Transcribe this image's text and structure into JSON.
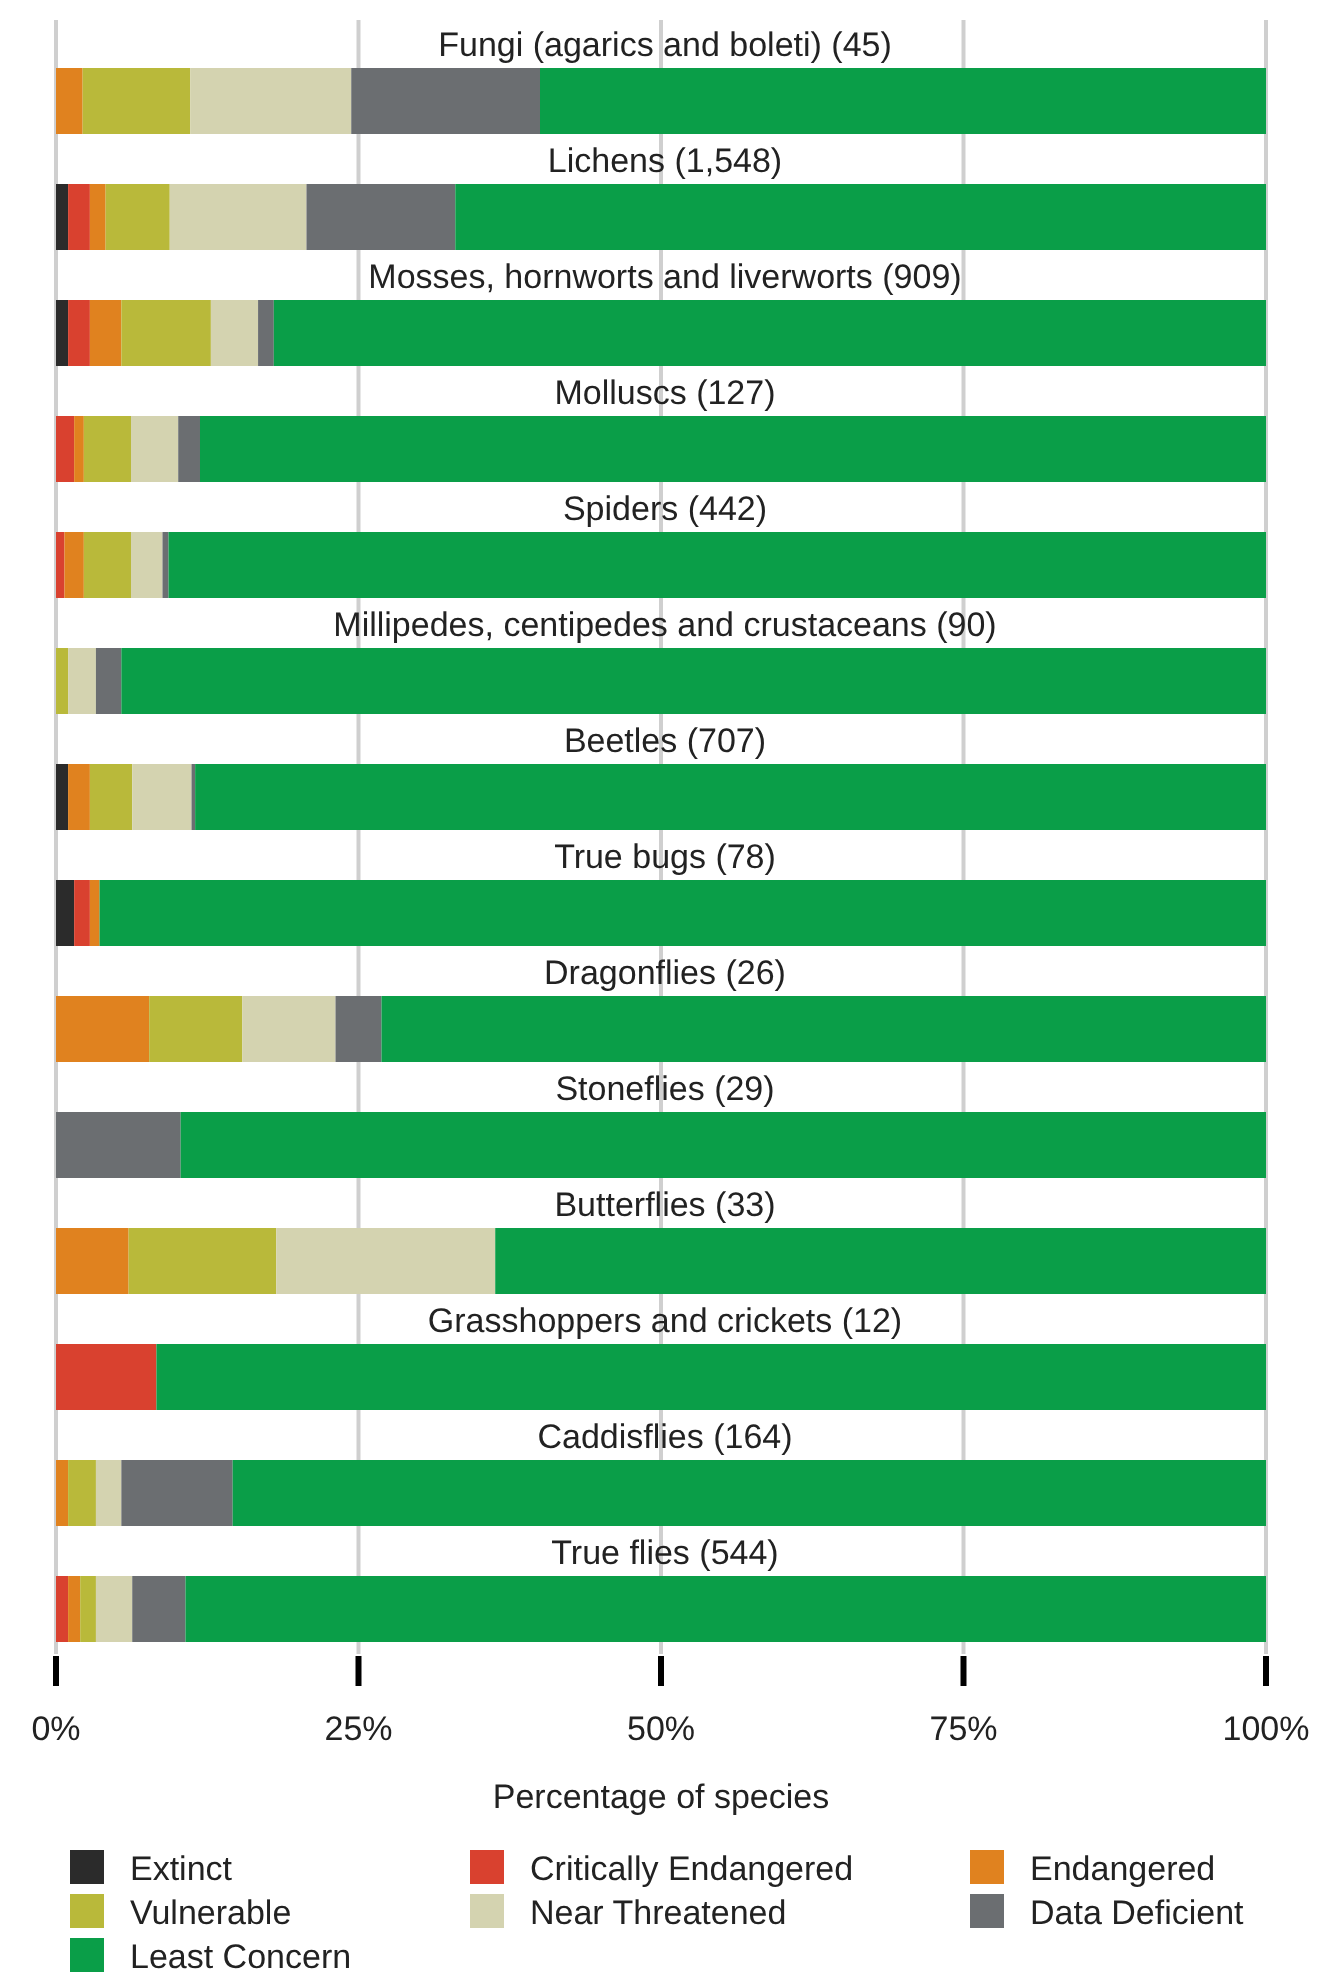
{
  "chart_data": {
    "type": "bar",
    "orientation": "horizontal",
    "stacked": true,
    "xlabel": "Percentage of species",
    "categories": [
      "Fungi (agarics and boleti) (45)",
      "Lichens (1,548)",
      "Mosses, hornworts and liverworts (909)",
      "Molluscs (127)",
      "Spiders (442)",
      "Millipedes, centipedes and crustaceans (90)",
      "Beetles (707)",
      "True bugs (78)",
      "Dragonflies (26)",
      "Stoneflies (29)",
      "Butterflies (33)",
      "Grasshoppers and crickets (12)",
      "Caddisflies (164)",
      "True flies (544)"
    ],
    "series": [
      {
        "name": "Extinct",
        "color": "#2b2b2b",
        "values": [
          0,
          1.0,
          1.0,
          0,
          0,
          0,
          1.0,
          1.5,
          0,
          0,
          0,
          0,
          0,
          0
        ]
      },
      {
        "name": "Critically Endangered",
        "color": "#d9412f",
        "values": [
          0,
          1.8,
          1.8,
          1.5,
          0.7,
          0,
          0,
          1.3,
          0,
          0,
          0,
          8.3,
          0,
          1.0
        ]
      },
      {
        "name": "Endangered",
        "color": "#e0821f",
        "values": [
          2.2,
          1.3,
          2.6,
          0.8,
          1.6,
          0,
          1.8,
          0.8,
          7.7,
          0,
          6.0,
          0,
          1.0,
          1.0
        ]
      },
      {
        "name": "Vulnerable",
        "color": "#b9b93a",
        "values": [
          8.9,
          5.3,
          7.4,
          3.9,
          3.9,
          1.0,
          3.5,
          0,
          7.7,
          0,
          12.2,
          0,
          2.3,
          1.3
        ]
      },
      {
        "name": "Near Threatened",
        "color": "#d4d3b0",
        "values": [
          13.3,
          11.3,
          3.9,
          3.9,
          2.6,
          2.3,
          4.9,
          0,
          7.7,
          0,
          18.1,
          0,
          2.1,
          3.0
        ]
      },
      {
        "name": "Data Deficient",
        "color": "#6b6e71",
        "values": [
          15.6,
          12.3,
          1.3,
          1.8,
          0.5,
          2.1,
          0.3,
          0,
          3.8,
          10.3,
          0,
          0,
          9.2,
          4.4
        ]
      },
      {
        "name": "Least Concern",
        "color": "#0a9e48",
        "values": [
          60.0,
          67.0,
          82.0,
          88.1,
          90.7,
          94.6,
          88.5,
          96.4,
          73.1,
          89.7,
          63.7,
          91.7,
          85.4,
          89.3
        ]
      }
    ],
    "xlim": [
      0,
      100
    ],
    "xticks": [
      {
        "value": 0,
        "label": "0%"
      },
      {
        "value": 25,
        "label": "25%"
      },
      {
        "value": 50,
        "label": "50%"
      },
      {
        "value": 75,
        "label": "75%"
      },
      {
        "value": 100,
        "label": "100%"
      }
    ],
    "grid": "x",
    "legend": "bottom"
  }
}
